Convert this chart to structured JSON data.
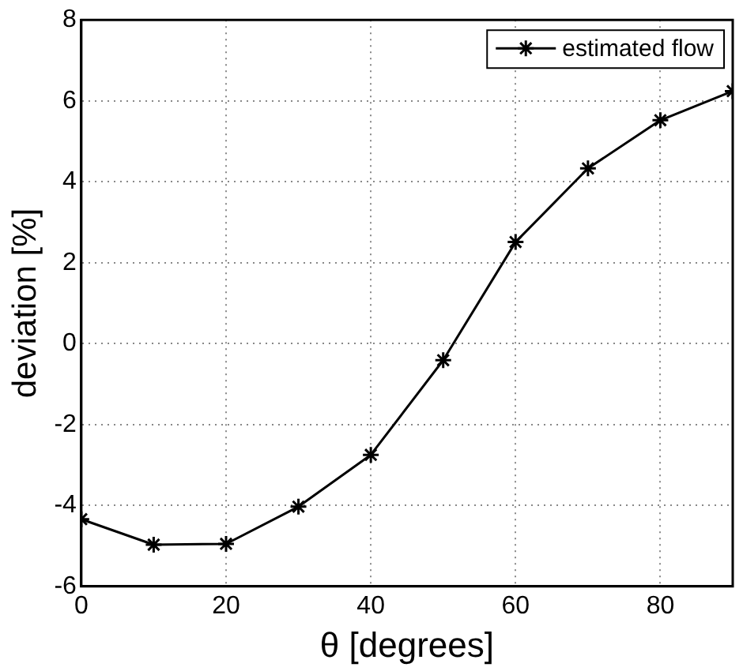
{
  "chart_data": {
    "type": "line",
    "xlabel": "θ [degrees]",
    "ylabel": "deviation [%]",
    "x": [
      0,
      10,
      20,
      30,
      40,
      50,
      60,
      70,
      80,
      90
    ],
    "series": [
      {
        "name": "estimated flow",
        "color": "#000000",
        "values": [
          -4.34,
          -4.97,
          -4.95,
          -4.03,
          -2.75,
          -0.41,
          2.51,
          4.33,
          5.52,
          6.24
        ]
      }
    ],
    "xlim": [
      0,
      90
    ],
    "xticks": [
      0,
      20,
      40,
      60,
      80
    ],
    "ylim": [
      -6,
      8
    ],
    "yticks": [
      -6,
      -4,
      -2,
      0,
      2,
      4,
      6,
      8
    ],
    "grid": true,
    "legend": "top right",
    "marker": "cross",
    "line_style": "solid"
  }
}
